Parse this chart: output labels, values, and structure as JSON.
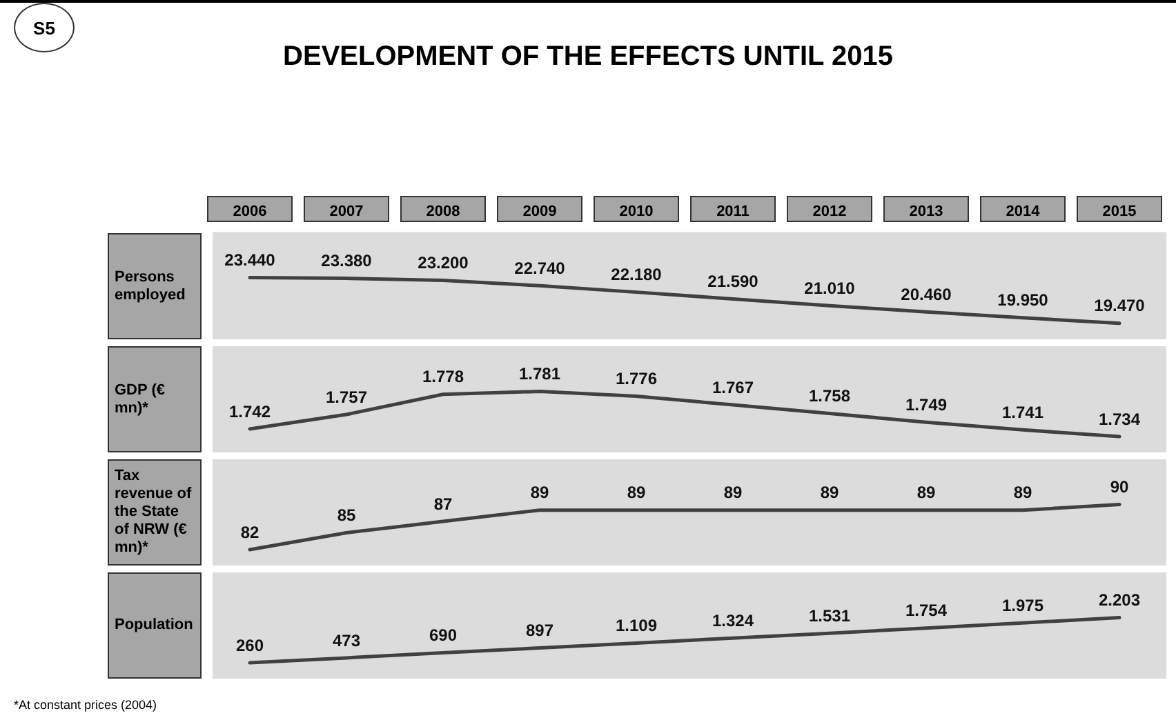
{
  "chart_data": [
    {
      "type": "line",
      "title": "DEVELOPMENT OF THE EFFECTS UNTIL 2015",
      "annotations": [
        "S5"
      ],
      "ylabel": "Persons employed",
      "categories": [
        "2006",
        "2007",
        "2008",
        "2009",
        "2010",
        "2011",
        "2012",
        "2013",
        "2014",
        "2015"
      ],
      "values": [
        23440,
        23380,
        23200,
        22740,
        22180,
        21590,
        21010,
        20460,
        19950,
        19470
      ],
      "value_labels": [
        "23.440",
        "23.380",
        "23.200",
        "22.740",
        "22.180",
        "21.590",
        "21.010",
        "20.460",
        "19.950",
        "19.470"
      ],
      "color": "#404040",
      "marker": "none",
      "tick_labels": "x"
    },
    {
      "type": "line",
      "ylabel": "GDP (€ mn)*",
      "categories": [
        "2006",
        "2007",
        "2008",
        "2009",
        "2010",
        "2011",
        "2012",
        "2013",
        "2014",
        "2015"
      ],
      "values": [
        1742,
        1757,
        1778,
        1781,
        1776,
        1767,
        1758,
        1749,
        1741,
        1734
      ],
      "value_labels": [
        "1.742",
        "1.757",
        "1.778",
        "1.781",
        "1.776",
        "1.767",
        "1.758",
        "1.749",
        "1.741",
        "1.734"
      ],
      "color": "#404040",
      "marker": "none",
      "tick_labels": false
    },
    {
      "type": "line",
      "ylabel": "Tax revenue of the State of NRW (€ mn)*",
      "categories": [
        "2006",
        "2007",
        "2008",
        "2009",
        "2010",
        "2011",
        "2012",
        "2013",
        "2014",
        "2015"
      ],
      "values": [
        82,
        85,
        87,
        89,
        89,
        89,
        89,
        89,
        89,
        90
      ],
      "value_labels": [
        "82",
        "85",
        "87",
        "89",
        "89",
        "89",
        "89",
        "89",
        "89",
        "90"
      ],
      "color": "#404040",
      "marker": "none",
      "tick_labels": false
    },
    {
      "type": "line",
      "ylabel": "Population",
      "annotations": [
        "*At constant prices (2004)"
      ],
      "categories": [
        "2006",
        "2007",
        "2008",
        "2009",
        "2010",
        "2011",
        "2012",
        "2013",
        "2014",
        "2015"
      ],
      "values": [
        260,
        473,
        690,
        897,
        1109,
        1324,
        1531,
        1754,
        1975,
        2203
      ],
      "value_labels": [
        "260",
        "473",
        "690",
        "897",
        "1.109",
        "1.324",
        "1.531",
        "1.754",
        "1.975",
        "2.203"
      ],
      "color": "#404040",
      "marker": "none",
      "tick_labels": false
    }
  ]
}
